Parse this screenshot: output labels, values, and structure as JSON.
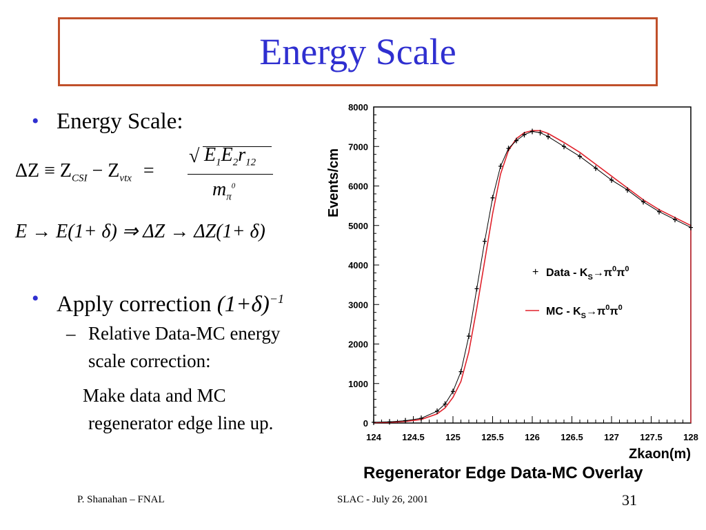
{
  "slide": {
    "title": "Energy Scale",
    "bullet1": "Energy Scale:",
    "eq1": {
      "lhs": "ΔZ ≡ Z",
      "sub_csi": "CSI",
      "minus": " − Z",
      "sub_vtx": "vtx",
      "equals": "=",
      "num_E1": "E",
      "num_sub1": "1",
      "num_E2": "E",
      "num_sub2": "2",
      "num_r": "r",
      "num_sub12": "12",
      "den_m": "m",
      "den_sub": "π",
      "den_sup": "0"
    },
    "eq2": "E → E(1+ δ) ⇒ ΔZ → ΔZ(1+ δ)",
    "bullet2_text": "Apply correction ",
    "bullet2_formula": "(1+δ)",
    "bullet2_sup": "−1",
    "sub_dash": "–",
    "sub_line1": "Relative Data-MC energy",
    "sub_line2": "scale correction:",
    "sub_line3": "Make data and MC",
    "sub_line4": "regenerator edge line up."
  },
  "footer": {
    "author": "P. Shanahan – FNAL",
    "venue": "SLAC  -  July 26, 2001",
    "page": "31"
  },
  "chart_data": {
    "type": "line",
    "title": "Regenerator Edge Data-MC Overlay",
    "xlabel": "Zkaon(m)",
    "ylabel": "Events/cm",
    "xlim": [
      124,
      128
    ],
    "ylim": [
      0,
      8000
    ],
    "xticks": [
      "124",
      "124.5",
      "125",
      "125.5",
      "126",
      "126.5",
      "127",
      "127.5",
      "128"
    ],
    "yticks": [
      "0",
      "1000",
      "2000",
      "3000",
      "4000",
      "5000",
      "6000",
      "7000",
      "8000"
    ],
    "legend": [
      {
        "marker": "+",
        "label": "Data - K",
        "sub": "S",
        "decay": "→π",
        "sup1": "0",
        "pi2": "π",
        "sup2": "0",
        "color": "#000000"
      },
      {
        "marker": "—",
        "label": "MC - K",
        "sub": "S",
        "decay": "→π",
        "sup1": "0",
        "pi2": "π",
        "sup2": "0",
        "color": "#e0202a"
      }
    ],
    "series": [
      {
        "name": "Data - KS→π0π0",
        "x": [
          124.0,
          124.2,
          124.4,
          124.6,
          124.8,
          124.9,
          125.0,
          125.1,
          125.2,
          125.3,
          125.4,
          125.5,
          125.6,
          125.7,
          125.8,
          125.9,
          126.0,
          126.1,
          126.2,
          126.4,
          126.6,
          126.8,
          127.0,
          127.2,
          127.4,
          127.6,
          127.8,
          128.0
        ],
        "values": [
          20,
          30,
          60,
          120,
          300,
          480,
          800,
          1300,
          2200,
          3400,
          4600,
          5700,
          6500,
          6950,
          7150,
          7300,
          7380,
          7350,
          7250,
          7000,
          6750,
          6450,
          6150,
          5900,
          5600,
          5350,
          5150,
          4950
        ]
      },
      {
        "name": "MC - KS→π0π0",
        "x": [
          124.0,
          124.2,
          124.4,
          124.6,
          124.8,
          124.9,
          125.0,
          125.1,
          125.2,
          125.3,
          125.4,
          125.5,
          125.6,
          125.7,
          125.8,
          125.9,
          126.0,
          126.1,
          126.2,
          126.4,
          126.6,
          126.8,
          127.0,
          127.2,
          127.4,
          127.6,
          127.8,
          128.0
        ],
        "values": [
          10,
          20,
          40,
          90,
          230,
          380,
          650,
          1050,
          1800,
          2900,
          4100,
          5300,
          6300,
          6900,
          7200,
          7350,
          7400,
          7400,
          7330,
          7100,
          6850,
          6550,
          6250,
          5950,
          5650,
          5400,
          5200,
          5000
        ]
      }
    ]
  }
}
